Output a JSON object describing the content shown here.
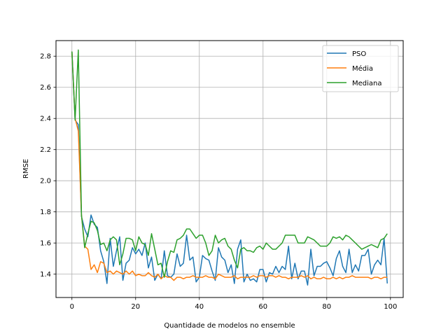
{
  "chart_data": {
    "type": "line",
    "xlabel": "Quantidade de modelos no ensemble",
    "ylabel": "RMSE",
    "xlim": [
      -5,
      104
    ],
    "ylim": [
      1.25,
      2.9
    ],
    "xticks": [
      0,
      20,
      40,
      60,
      80,
      100
    ],
    "yticks": [
      1.4,
      1.6,
      1.8,
      2.0,
      2.2,
      2.4,
      2.6,
      2.8
    ],
    "xtick_labels": [
      "0",
      "20",
      "40",
      "60",
      "80",
      "100"
    ],
    "ytick_labels": [
      "1.4",
      "1.6",
      "1.8",
      "2.0",
      "2.2",
      "2.4",
      "2.6",
      "2.8"
    ],
    "grid": true,
    "legend_position": "top-right",
    "x": [
      0,
      1,
      2,
      3,
      4,
      5,
      6,
      7,
      8,
      9,
      10,
      11,
      12,
      13,
      14,
      15,
      16,
      17,
      18,
      19,
      20,
      21,
      22,
      23,
      24,
      25,
      26,
      27,
      28,
      29,
      30,
      31,
      32,
      33,
      34,
      35,
      36,
      37,
      38,
      39,
      40,
      41,
      42,
      43,
      44,
      45,
      46,
      47,
      48,
      49,
      50,
      51,
      52,
      53,
      54,
      55,
      56,
      57,
      58,
      59,
      60,
      61,
      62,
      63,
      64,
      65,
      66,
      67,
      68,
      69,
      70,
      71,
      72,
      73,
      74,
      75,
      76,
      77,
      78,
      79,
      80,
      81,
      82,
      83,
      84,
      85,
      86,
      87,
      88,
      89,
      90,
      91,
      92,
      93,
      94,
      95,
      96,
      97,
      98,
      99
    ],
    "series": [
      {
        "name": "PSO",
        "color": "#1f77b4",
        "values": [
          2.83,
          2.39,
          2.36,
          1.77,
          1.69,
          1.64,
          1.78,
          1.72,
          1.7,
          1.55,
          1.48,
          1.34,
          1.63,
          1.45,
          1.55,
          1.64,
          1.36,
          1.47,
          1.49,
          1.57,
          1.53,
          1.56,
          1.52,
          1.6,
          1.44,
          1.51,
          1.36,
          1.4,
          1.37,
          1.55,
          1.39,
          1.38,
          1.4,
          1.53,
          1.45,
          1.47,
          1.65,
          1.49,
          1.51,
          1.35,
          1.38,
          1.52,
          1.5,
          1.49,
          1.42,
          1.36,
          1.57,
          1.51,
          1.49,
          1.41,
          1.46,
          1.34,
          1.56,
          1.62,
          1.35,
          1.4,
          1.36,
          1.37,
          1.35,
          1.43,
          1.43,
          1.35,
          1.41,
          1.4,
          1.45,
          1.41,
          1.45,
          1.43,
          1.58,
          1.37,
          1.47,
          1.37,
          1.42,
          1.42,
          1.33,
          1.56,
          1.39,
          1.45,
          1.45,
          1.47,
          1.48,
          1.44,
          1.39,
          1.5,
          1.55,
          1.45,
          1.41,
          1.56,
          1.41,
          1.46,
          1.42,
          1.52,
          1.52,
          1.56,
          1.4,
          1.46,
          1.49,
          1.46,
          1.63,
          1.34
        ]
      },
      {
        "name": "Média",
        "color": "#ff7f0e",
        "values": [
          2.83,
          2.4,
          2.32,
          1.78,
          1.58,
          1.56,
          1.43,
          1.46,
          1.41,
          1.48,
          1.47,
          1.41,
          1.42,
          1.4,
          1.42,
          1.41,
          1.4,
          1.42,
          1.4,
          1.42,
          1.39,
          1.4,
          1.39,
          1.39,
          1.41,
          1.39,
          1.38,
          1.4,
          1.37,
          1.39,
          1.38,
          1.38,
          1.36,
          1.38,
          1.38,
          1.37,
          1.38,
          1.38,
          1.39,
          1.38,
          1.38,
          1.38,
          1.39,
          1.38,
          1.38,
          1.37,
          1.4,
          1.39,
          1.38,
          1.38,
          1.38,
          1.39,
          1.37,
          1.38,
          1.38,
          1.38,
          1.38,
          1.39,
          1.38,
          1.39,
          1.39,
          1.38,
          1.39,
          1.39,
          1.38,
          1.39,
          1.38,
          1.38,
          1.37,
          1.38,
          1.38,
          1.38,
          1.39,
          1.38,
          1.39,
          1.37,
          1.38,
          1.37,
          1.37,
          1.38,
          1.37,
          1.37,
          1.38,
          1.37,
          1.38,
          1.37,
          1.38,
          1.38,
          1.39,
          1.38,
          1.38,
          1.38,
          1.38,
          1.38,
          1.37,
          1.38,
          1.38,
          1.37,
          1.38,
          1.38
        ]
      },
      {
        "name": "Mediana",
        "color": "#2ca02c",
        "values": [
          2.83,
          2.39,
          2.84,
          1.78,
          1.57,
          1.66,
          1.74,
          1.73,
          1.68,
          1.59,
          1.6,
          1.55,
          1.62,
          1.64,
          1.62,
          1.46,
          1.53,
          1.63,
          1.63,
          1.62,
          1.55,
          1.64,
          1.6,
          1.59,
          1.52,
          1.66,
          1.56,
          1.46,
          1.47,
          1.38,
          1.48,
          1.55,
          1.54,
          1.62,
          1.63,
          1.65,
          1.69,
          1.69,
          1.66,
          1.63,
          1.65,
          1.65,
          1.6,
          1.52,
          1.55,
          1.65,
          1.6,
          1.62,
          1.63,
          1.58,
          1.56,
          1.49,
          1.44,
          1.56,
          1.57,
          1.55,
          1.55,
          1.54,
          1.57,
          1.58,
          1.56,
          1.6,
          1.58,
          1.56,
          1.56,
          1.58,
          1.6,
          1.65,
          1.65,
          1.65,
          1.65,
          1.6,
          1.6,
          1.6,
          1.64,
          1.63,
          1.62,
          1.6,
          1.58,
          1.58,
          1.58,
          1.6,
          1.64,
          1.63,
          1.64,
          1.62,
          1.65,
          1.64,
          1.62,
          1.6,
          1.58,
          1.56,
          1.57,
          1.58,
          1.59,
          1.58,
          1.57,
          1.62,
          1.63,
          1.66
        ]
      }
    ]
  }
}
